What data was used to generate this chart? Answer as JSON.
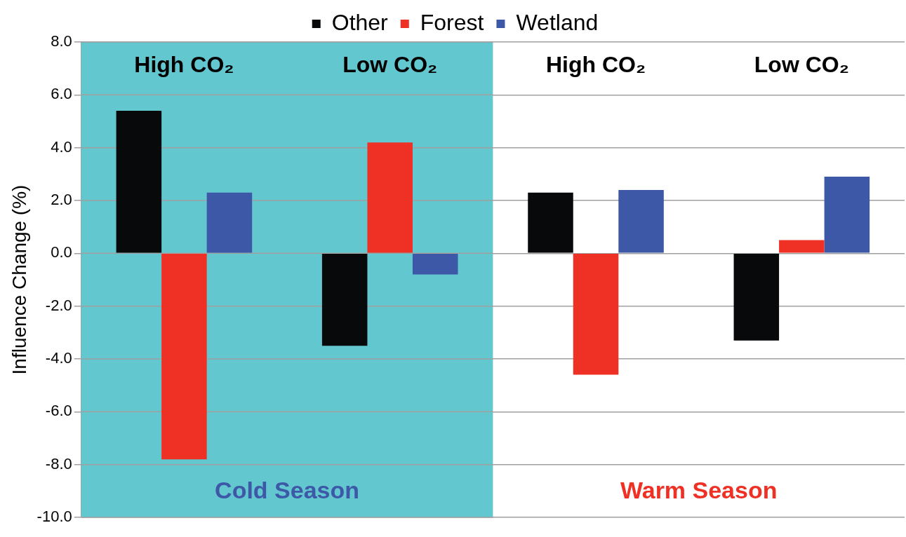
{
  "chart_data": {
    "type": "bar",
    "ylabel": "Influence Change (%)",
    "categories": [
      "High CO₂",
      "Low CO₂",
      "High CO₂",
      "Low CO₂"
    ],
    "series": [
      {
        "name": "Other",
        "color": "#08090b",
        "values": [
          5.4,
          -3.5,
          2.3,
          -3.3
        ]
      },
      {
        "name": "Forest",
        "color": "#ee3124",
        "values": [
          -7.8,
          4.2,
          -4.6,
          0.5
        ]
      },
      {
        "name": "Wetland",
        "color": "#3e58a8",
        "values": [
          2.3,
          -0.8,
          2.4,
          2.9
        ]
      }
    ],
    "ylim": [
      -10,
      8
    ],
    "yticks": [
      {
        "value": -10,
        "label": "-10.0"
      },
      {
        "value": -8,
        "label": "-8.0"
      },
      {
        "value": -6,
        "label": "-6.0"
      },
      {
        "value": -4,
        "label": "-4.0"
      },
      {
        "value": -2,
        "label": "-2.0"
      },
      {
        "value": 0,
        "label": "0.0"
      },
      {
        "value": 2,
        "label": "2.0"
      },
      {
        "value": 4,
        "label": "4.0"
      },
      {
        "value": 6,
        "label": "6.0"
      },
      {
        "value": 8,
        "label": "8.0"
      }
    ],
    "bands": [
      {
        "axis": "x",
        "from": "High CO₂",
        "to": "Low CO₂",
        "label": "Cold Season",
        "color": "#62c7cf"
      }
    ],
    "annotations": [
      "Warm Season"
    ],
    "grid": "y",
    "legend": "top",
    "marker": "square"
  }
}
